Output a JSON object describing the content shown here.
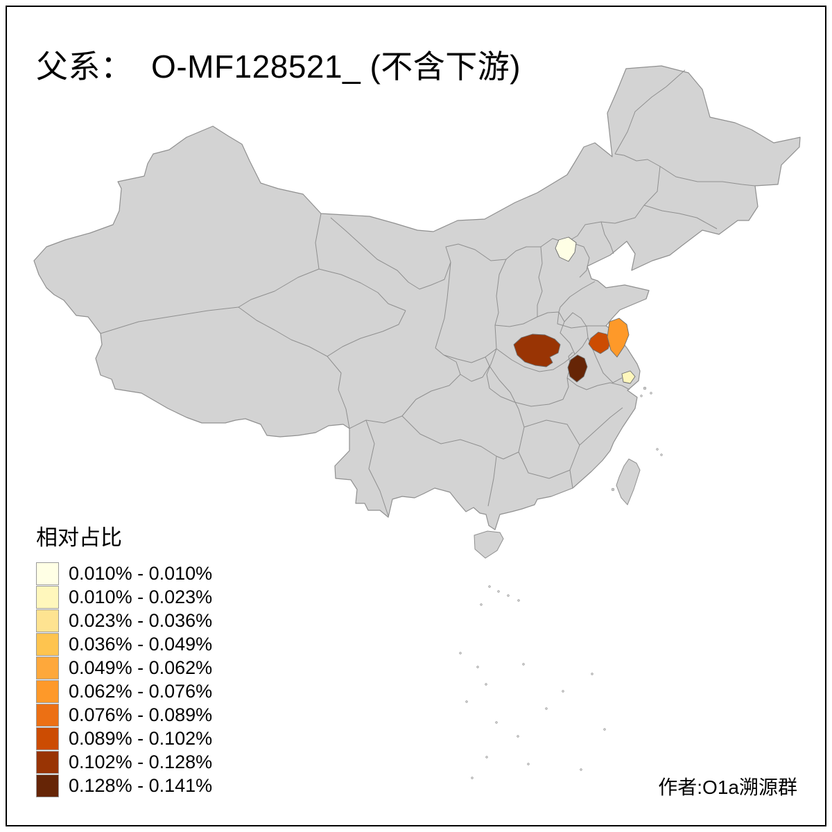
{
  "title": "父系：  O-MF128521_ (不含下游)",
  "legend": {
    "title": "相对占比",
    "bins": [
      {
        "label": "0.010% - 0.010%",
        "color": "#FFFFE5"
      },
      {
        "label": "0.010% - 0.023%",
        "color": "#FFF7BC"
      },
      {
        "label": "0.023% - 0.036%",
        "color": "#FEE391"
      },
      {
        "label": "0.036% - 0.049%",
        "color": "#FEC44F"
      },
      {
        "label": "0.049% - 0.062%",
        "color": "#FEA83B"
      },
      {
        "label": "0.062% - 0.076%",
        "color": "#FE9929"
      },
      {
        "label": "0.076% - 0.089%",
        "color": "#EC7014"
      },
      {
        "label": "0.089% - 0.102%",
        "color": "#CC4C02"
      },
      {
        "label": "0.102% - 0.128%",
        "color": "#993404"
      },
      {
        "label": "0.128% - 0.141%",
        "color": "#662506"
      }
    ]
  },
  "map": {
    "base_fill": "#D3D3D3",
    "border_color": "#8F8F8F",
    "regions": [
      {
        "id": "beijing",
        "color": "#FFFFE5"
      },
      {
        "id": "south-henan",
        "color": "#993404"
      },
      {
        "id": "west-anhui",
        "color": "#662506"
      },
      {
        "id": "north-jiangsu",
        "color": "#CC4C02"
      },
      {
        "id": "coastal-jiangsu",
        "color": "#FE9929"
      },
      {
        "id": "shanghai",
        "color": "#FFF7BC"
      }
    ]
  },
  "credit": "作者:O1a溯源群"
}
